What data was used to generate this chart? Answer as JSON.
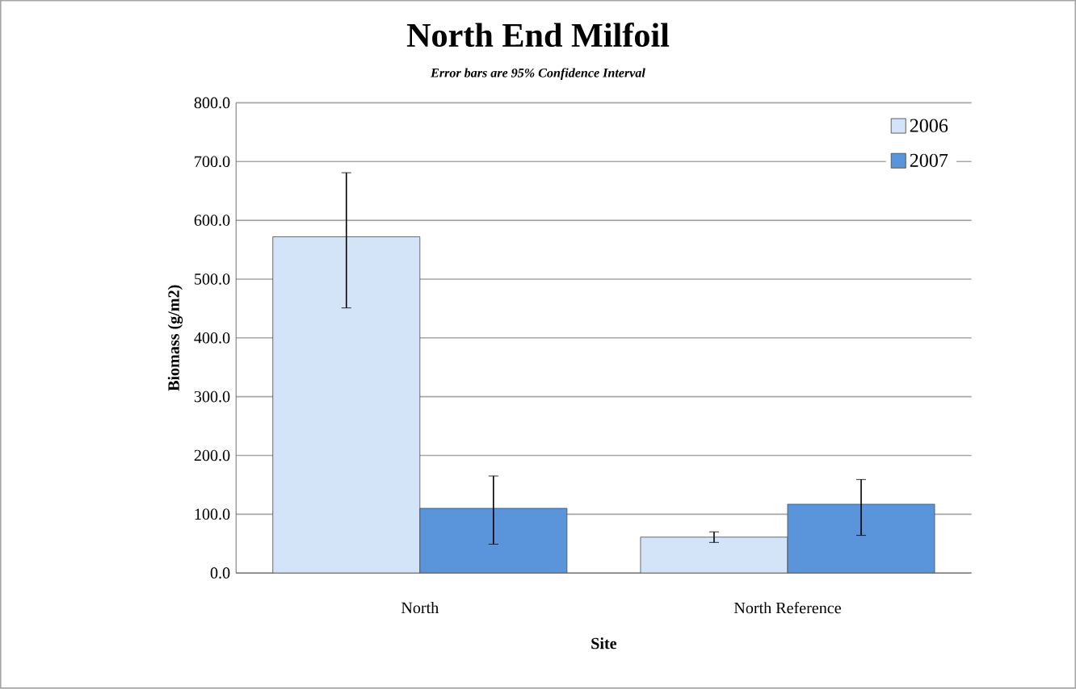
{
  "chart_data": {
    "type": "bar",
    "title": "North End Milfoil",
    "subtitle": "*Error bars are 95% Confidence Interval*",
    "xlabel": "Site",
    "ylabel": "Biomass (g/m2)",
    "categories": [
      "North",
      "North Reference"
    ],
    "series": [
      {
        "name": "2006",
        "color": "#d3e3f8",
        "values": [
          572,
          61
        ],
        "errors": [
          [
            451,
            681
          ],
          [
            52,
            70
          ]
        ]
      },
      {
        "name": "2007",
        "color": "#5a95dc",
        "values": [
          110,
          117
        ],
        "errors": [
          [
            49,
            165
          ],
          [
            64,
            159
          ]
        ]
      }
    ],
    "ylim": [
      0,
      800
    ],
    "yticks": [
      {
        "value": 0,
        "label": "0.0"
      },
      {
        "value": 100,
        "label": "100.0"
      },
      {
        "value": 200,
        "label": "200.0"
      },
      {
        "value": 300,
        "label": "300.0"
      },
      {
        "value": 400,
        "label": "400.0"
      },
      {
        "value": 500,
        "label": "500.0"
      },
      {
        "value": 600,
        "label": "600.0"
      },
      {
        "value": 700,
        "label": "700.0"
      },
      {
        "value": 800,
        "label": "800.0"
      }
    ],
    "grid": "y",
    "legend": "top right"
  }
}
